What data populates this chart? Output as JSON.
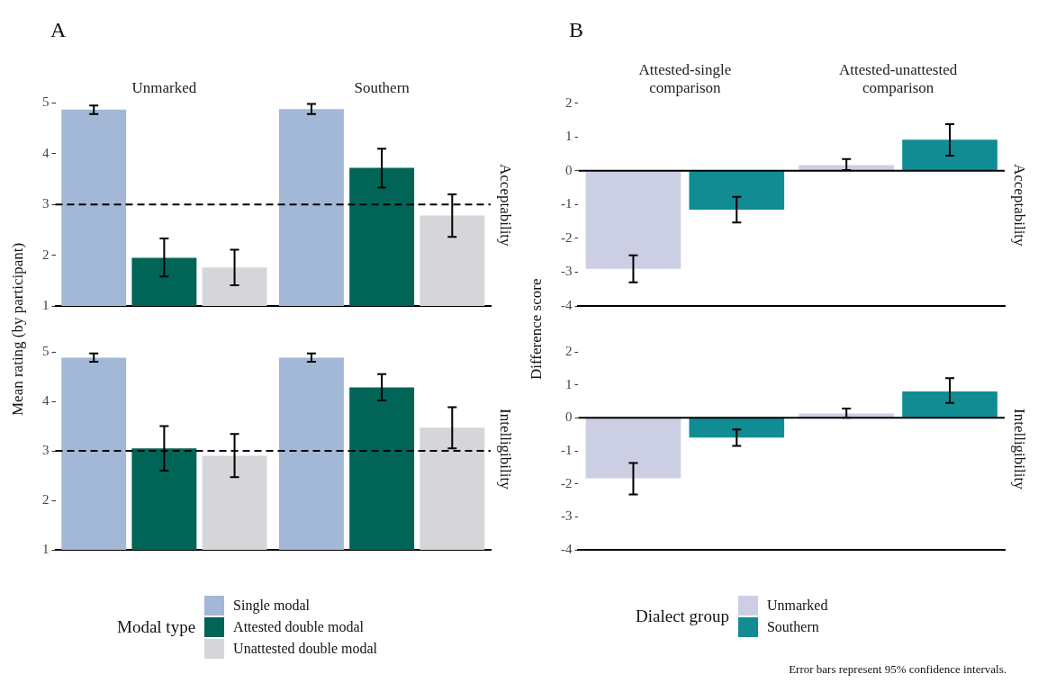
{
  "chart_data": [
    {
      "type": "bar",
      "ylabel": "Mean rating (by participant)",
      "annotations": [
        "A",
        "Acceptability"
      ],
      "categories": [
        "Unmarked",
        "Southern"
      ],
      "ylim": [
        1,
        5
      ],
      "yticks": [
        1,
        2,
        3,
        4,
        5
      ],
      "ref_lines": [
        {
          "axis": "y",
          "value": 3,
          "color": "#000000",
          "line_style": "dashed"
        }
      ],
      "series": [
        {
          "color": "#a3b8d6",
          "values": [
            4.87,
            4.88
          ],
          "errors": [
            [
              4.78,
              4.95
            ],
            [
              4.78,
              4.98
            ]
          ]
        },
        {
          "color": "#006557",
          "values": [
            1.95,
            3.72
          ],
          "errors": [
            [
              1.58,
              2.33
            ],
            [
              3.33,
              4.1
            ]
          ]
        },
        {
          "color": "#d6d6da",
          "values": [
            1.76,
            2.78
          ],
          "errors": [
            [
              1.41,
              2.11
            ],
            [
              2.36,
              3.2
            ]
          ]
        }
      ]
    },
    {
      "type": "bar",
      "annotations": [
        "Intelligibility"
      ],
      "categories": [
        null,
        null
      ],
      "ylim": [
        1,
        5
      ],
      "yticks": [
        1,
        2,
        3,
        4,
        5
      ],
      "legend": "bottom",
      "legend_title": "Modal type",
      "ref_lines": [
        {
          "axis": "y",
          "value": 3,
          "color": "#000000",
          "line_style": "dashed"
        }
      ],
      "series": [
        {
          "name": "Single modal",
          "color": "#a3b8d6",
          "values": [
            4.88,
            4.88
          ],
          "errors": [
            [
              4.8,
              4.97
            ],
            [
              4.8,
              4.97
            ]
          ]
        },
        {
          "name": "Attested double modal",
          "color": "#006557",
          "values": [
            3.05,
            4.28
          ],
          "errors": [
            [
              2.6,
              3.5
            ],
            [
              4.02,
              4.55
            ]
          ]
        },
        {
          "name": "Unattested double modal",
          "color": "#d6d6da",
          "values": [
            2.9,
            3.47
          ],
          "errors": [
            [
              2.47,
              3.34
            ],
            [
              3.05,
              3.88
            ]
          ]
        }
      ]
    },
    {
      "type": "bar",
      "ylabel": "Difference score",
      "annotations": [
        "B",
        "Acceptability"
      ],
      "categories": [
        "Attested-single comparison",
        "Attested-unattested comparison"
      ],
      "ylim": [
        -4,
        2
      ],
      "yticks": [
        -4,
        -3,
        -2,
        -1,
        0,
        1,
        2
      ],
      "ref_lines": [
        {
          "axis": "y",
          "value": 0,
          "color": "#000000",
          "line_style": "solid"
        }
      ],
      "series": [
        {
          "color": "#cccfe3",
          "values": [
            -2.9,
            0.17
          ],
          "errors": [
            [
              -3.3,
              -2.5
            ],
            [
              0.02,
              0.35
            ]
          ]
        },
        {
          "color": "#128c93",
          "values": [
            -1.15,
            0.92
          ],
          "errors": [
            [
              -1.53,
              -0.77
            ],
            [
              0.45,
              1.38
            ]
          ]
        }
      ]
    },
    {
      "type": "bar",
      "annotations": [
        "Intelligibility",
        "Error bars represent 95% confidence intervals."
      ],
      "categories": [
        null,
        null
      ],
      "ylim": [
        -4,
        2
      ],
      "yticks": [
        -4,
        -3,
        -2,
        -1,
        0,
        1,
        2
      ],
      "legend": "bottom",
      "legend_title": "Dialect group",
      "ref_lines": [
        {
          "axis": "y",
          "value": 0,
          "color": "#000000",
          "line_style": "solid"
        }
      ],
      "series": [
        {
          "name": "Unmarked",
          "color": "#cccfe3",
          "values": [
            -1.83,
            0.13
          ],
          "errors": [
            [
              -2.32,
              -1.37
            ],
            [
              0.0,
              0.28
            ]
          ]
        },
        {
          "name": "Southern",
          "color": "#128c93",
          "values": [
            -0.6,
            0.8
          ],
          "errors": [
            [
              -0.85,
              -0.35
            ],
            [
              0.45,
              1.2
            ]
          ]
        }
      ]
    }
  ]
}
